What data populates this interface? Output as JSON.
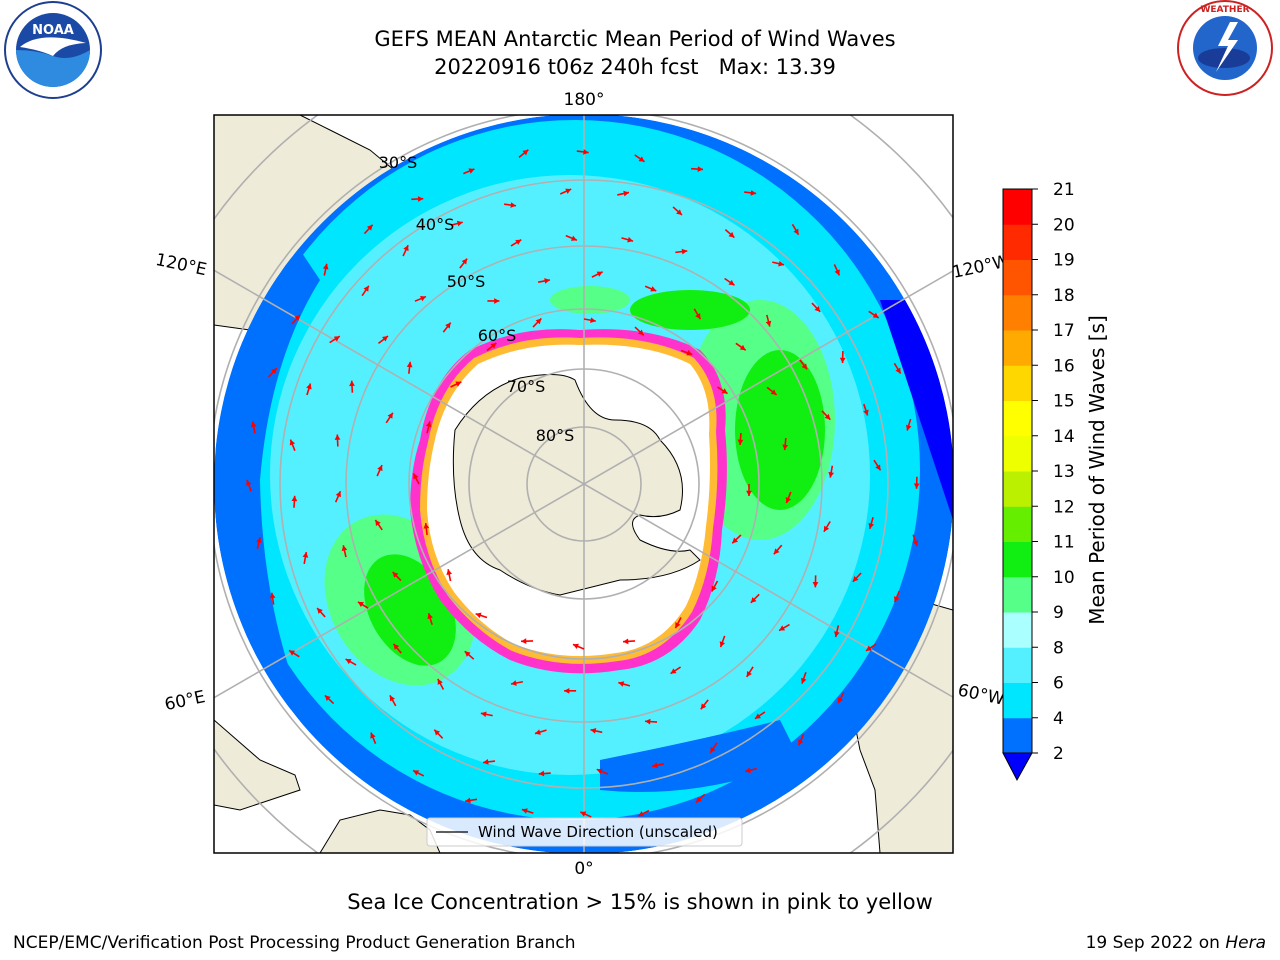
{
  "header": {
    "title_line1": "GEFS MEAN Antarctic Mean Period of Wind Waves",
    "title_line2": "20220916 t06z 240h fcst   Max: 13.39",
    "left_logo": "noaa-logo",
    "right_logo": "national-weather-service-logo"
  },
  "map": {
    "projection": "south-polar-stereographic",
    "longitude_labels": {
      "top": "180°",
      "bottom": "0°",
      "upper_left": "120°E",
      "upper_right": "120°W",
      "lower_left": "60°E",
      "lower_right": "60°W"
    },
    "latitude_labels": [
      "30°S",
      "40°S",
      "50°S",
      "60°S",
      "70°S",
      "80°S"
    ],
    "legend_label": "Wind Wave Direction (unscaled)",
    "arrow_color": "#ff0000",
    "land_color": "#efebd9",
    "sea_ice_colors": [
      "#ff33cc",
      "#ffbb33"
    ]
  },
  "colorbar": {
    "label": "Mean Period of Wind Waves [s]",
    "ticks": [
      "2",
      "4",
      "6",
      "8",
      "9",
      "10",
      "11",
      "12",
      "13",
      "14",
      "15",
      "16",
      "17",
      "18",
      "19",
      "20",
      "21"
    ],
    "colors": [
      "#0070ff",
      "#00e6ff",
      "#55f0ff",
      "#aaffff",
      "#55ff88",
      "#11ee11",
      "#66ee00",
      "#bbf000",
      "#eeff00",
      "#ffff00",
      "#ffd700",
      "#ffaa00",
      "#ff7f00",
      "#ff5500",
      "#ff2a00",
      "#ff0000"
    ],
    "under_color": "#0000ff"
  },
  "footer": {
    "subcaption": "Sea Ice Concentration > 15% is shown in pink to yellow",
    "left": "NCEP/EMC/Verification Post Processing Product Generation Branch",
    "right_prefix": "19 Sep 2022 on",
    "right_host": "Hera"
  }
}
